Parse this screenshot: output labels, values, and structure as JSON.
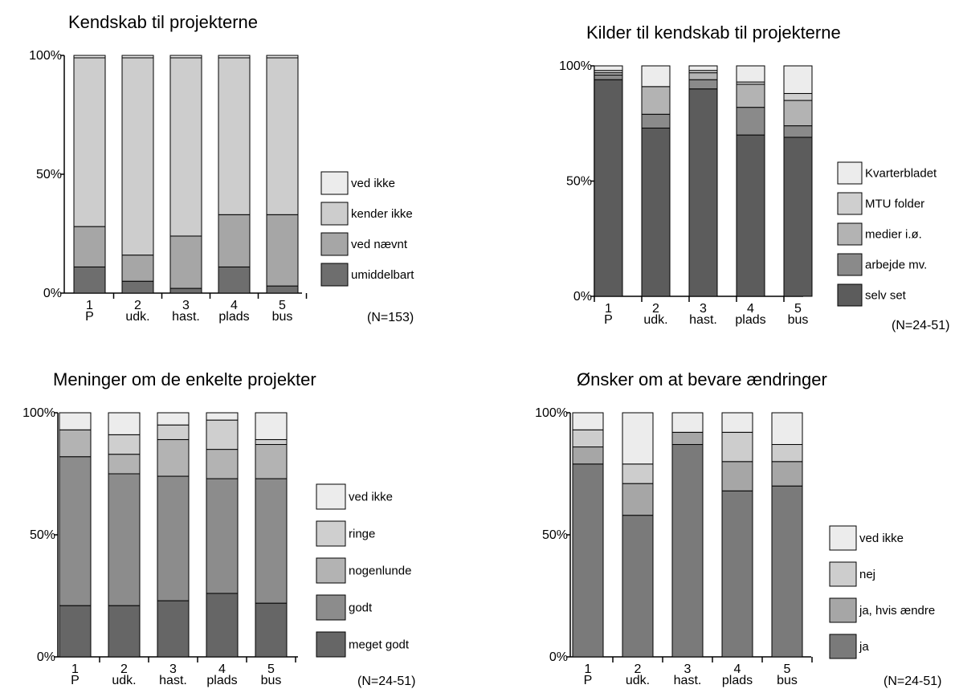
{
  "chart_data": [
    {
      "type": "bar",
      "stacked": true,
      "title": "Kendskab til projekterne",
      "categories": [
        [
          "1",
          "P"
        ],
        [
          "2",
          "udk."
        ],
        [
          "3",
          "hast."
        ],
        [
          "4",
          "plads"
        ],
        [
          "5",
          "bus"
        ]
      ],
      "yticks": [
        "0%",
        "50%",
        "100%"
      ],
      "ylim": [
        0,
        100
      ],
      "note": "(N=153)",
      "legend_position": "right",
      "series": [
        {
          "name": "umiddelbart",
          "color": "#6e6e6e",
          "values": [
            11,
            5,
            2,
            11,
            3
          ]
        },
        {
          "name": "ved nævnt",
          "color": "#a6a6a6",
          "values": [
            17,
            11,
            22,
            22,
            30
          ]
        },
        {
          "name": "kender ikke",
          "color": "#cdcdcd",
          "values": [
            71,
            83,
            75,
            66,
            66
          ]
        },
        {
          "name": "ved ikke",
          "color": "#ececec",
          "values": [
            1,
            1,
            1,
            1,
            1
          ]
        }
      ]
    },
    {
      "type": "bar",
      "stacked": true,
      "title": "Kilder til kendskab til projekterne",
      "categories": [
        [
          "1",
          "P"
        ],
        [
          "2",
          "udk."
        ],
        [
          "3",
          "hast."
        ],
        [
          "4",
          "plads"
        ],
        [
          "5",
          "bus"
        ]
      ],
      "yticks": [
        "0%",
        "50%",
        "100%"
      ],
      "ylim": [
        0,
        100
      ],
      "note": "(N=24-51)",
      "legend_position": "right",
      "series": [
        {
          "name": "selv set",
          "color": "#5c5c5c",
          "values": [
            94,
            73,
            90,
            70,
            69
          ]
        },
        {
          "name": "arbejde mv.",
          "color": "#8a8a8a",
          "values": [
            2,
            6,
            4,
            12,
            5
          ]
        },
        {
          "name": "medier i.ø.",
          "color": "#b3b3b3",
          "values": [
            1,
            12,
            3,
            10,
            11
          ]
        },
        {
          "name": "MTU folder",
          "color": "#cfcfcf",
          "values": [
            1,
            0,
            1,
            1,
            3
          ]
        },
        {
          "name": "Kvarterbladet",
          "color": "#ececec",
          "values": [
            2,
            9,
            2,
            7,
            12
          ]
        }
      ]
    },
    {
      "type": "bar",
      "stacked": true,
      "title": "Meninger om de enkelte projekter",
      "categories": [
        [
          "1",
          "P"
        ],
        [
          "2",
          "udk."
        ],
        [
          "3",
          "hast."
        ],
        [
          "4",
          "plads"
        ],
        [
          "5",
          "bus"
        ]
      ],
      "yticks": [
        "0%",
        "50%",
        "100%"
      ],
      "ylim": [
        0,
        100
      ],
      "note": "(N=24-51)",
      "legend_position": "right",
      "series": [
        {
          "name": "meget godt",
          "color": "#666666",
          "values": [
            21,
            21,
            23,
            26,
            22
          ]
        },
        {
          "name": "godt",
          "color": "#8c8c8c",
          "values": [
            61,
            54,
            51,
            47,
            51
          ]
        },
        {
          "name": "nogenlunde",
          "color": "#b3b3b3",
          "values": [
            11,
            8,
            15,
            12,
            14
          ]
        },
        {
          "name": "ringe",
          "color": "#cfcfcf",
          "values": [
            0,
            8,
            6,
            12,
            2
          ]
        },
        {
          "name": "ved ikke",
          "color": "#ececec",
          "values": [
            7,
            9,
            5,
            3,
            11
          ]
        }
      ]
    },
    {
      "type": "bar",
      "stacked": true,
      "title": "Ønsker om at bevare ændringer",
      "categories": [
        [
          "1",
          "P"
        ],
        [
          "2",
          "udk."
        ],
        [
          "3",
          "hast."
        ],
        [
          "4",
          "plads"
        ],
        [
          "5",
          "bus"
        ]
      ],
      "yticks": [
        "0%",
        "50%",
        "100%"
      ],
      "ylim": [
        0,
        100
      ],
      "note": "(N=24-51)",
      "legend_position": "right",
      "series": [
        {
          "name": "ja",
          "color": "#7a7a7a",
          "values": [
            79,
            58,
            87,
            68,
            70
          ]
        },
        {
          "name": "ja, hvis ændre",
          "color": "#a6a6a6",
          "values": [
            7,
            13,
            5,
            12,
            10
          ]
        },
        {
          "name": "nej",
          "color": "#cdcdcd",
          "values": [
            7,
            8,
            0,
            12,
            7
          ]
        },
        {
          "name": "ved ikke",
          "color": "#ececec",
          "values": [
            7,
            21,
            8,
            8,
            13
          ]
        }
      ]
    }
  ]
}
